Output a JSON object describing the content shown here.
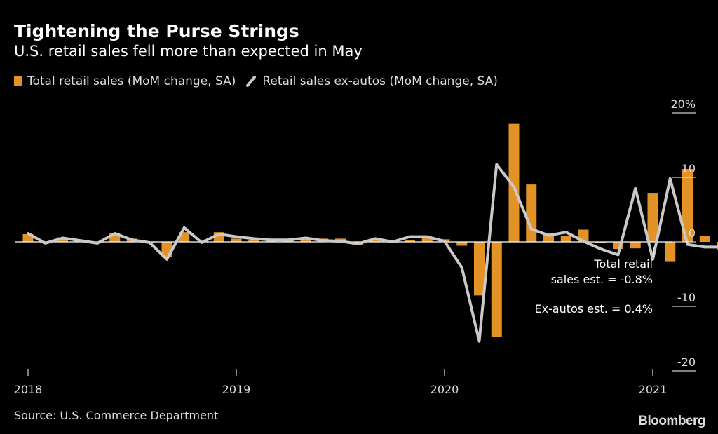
{
  "header": {
    "title": "Tightening the Purse Strings",
    "subtitle": "U.S. retail sales fell more than expected in May"
  },
  "legend": {
    "bar_label": "Total retail sales (MoM change, SA)",
    "line_label": "Retail sales ex-autos (MoM change, SA)"
  },
  "footer": {
    "source": "Source: U.S. Commerce Department",
    "brand": "Bloomberg"
  },
  "colors": {
    "bar": "#e39226",
    "line": "#c9c9c9",
    "background": "#000000"
  },
  "chart_data": {
    "type": "bar",
    "x": [
      "2018-01",
      "2018-02",
      "2018-03",
      "2018-04",
      "2018-05",
      "2018-06",
      "2018-07",
      "2018-08",
      "2018-09",
      "2018-10",
      "2018-11",
      "2018-12",
      "2019-01",
      "2019-02",
      "2019-03",
      "2019-04",
      "2019-05",
      "2019-06",
      "2019-07",
      "2019-08",
      "2019-09",
      "2019-10",
      "2019-11",
      "2019-12",
      "2020-01",
      "2020-02",
      "2020-03",
      "2020-04",
      "2020-05",
      "2020-06",
      "2020-07",
      "2020-08",
      "2020-09",
      "2020-10",
      "2020-11",
      "2020-12",
      "2021-01",
      "2021-02",
      "2021-03",
      "2021-04",
      "2021-05"
    ],
    "series": [
      {
        "name": "Total retail sales (MoM change, SA)",
        "type": "bar",
        "values": [
          1.2,
          -0.2,
          0.7,
          0.2,
          -0.2,
          1.3,
          0.5,
          -0.1,
          -2.4,
          1.5,
          0.0,
          1.5,
          0.5,
          0.3,
          0.3,
          0.3,
          0.5,
          0.5,
          0.5,
          -0.5,
          0.3,
          -0.1,
          0.3,
          0.7,
          0.4,
          -0.6,
          -8.3,
          -14.7,
          18.3,
          8.9,
          1.4,
          0.9,
          1.9,
          -0.2,
          -1.1,
          -1.0,
          7.6,
          -3.0,
          11.3,
          0.9,
          -1.3
        ]
      },
      {
        "name": "Retail sales ex-autos (MoM change, SA)",
        "type": "line",
        "values": [
          1.3,
          -0.2,
          0.6,
          0.2,
          -0.2,
          1.3,
          0.3,
          -0.1,
          -2.7,
          2.2,
          -0.1,
          1.2,
          0.8,
          0.5,
          0.3,
          0.3,
          0.6,
          0.2,
          0.1,
          -0.3,
          0.5,
          0.0,
          0.8,
          0.8,
          0.1,
          -4.0,
          -15.4,
          12.0,
          8.5,
          2.0,
          1.0,
          1.5,
          0.1,
          -1.1,
          -2.0,
          8.3,
          -2.7,
          9.8,
          -0.4,
          -0.8,
          -0.8
        ]
      }
    ],
    "x_tick_labels": [
      "2018",
      "2019",
      "2020",
      "2021"
    ],
    "y_tick_labels": [
      "20%",
      "10",
      "0",
      "-10",
      "-20"
    ],
    "y_ticks": [
      20,
      10,
      0,
      -10,
      -20
    ],
    "ylim": [
      -20,
      20
    ],
    "grid": false,
    "legend_position": "top-left",
    "annotations": {
      "total_line1": "Total retail",
      "total_line2": "sales est. = -0.8%",
      "exautos": "Ex-autos est. = 0.4%"
    }
  }
}
